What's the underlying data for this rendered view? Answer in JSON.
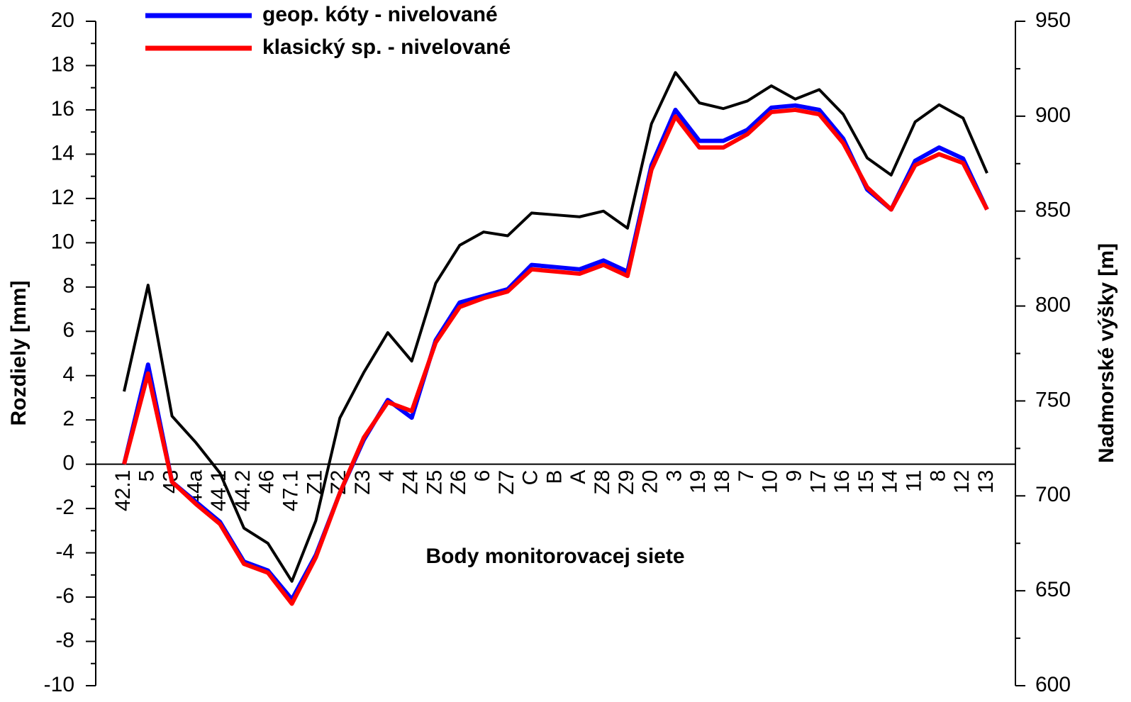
{
  "chart_data": {
    "type": "line",
    "y_label": "Rozdiely [mm]",
    "y2_label": "Nadmorské výšky [m]",
    "x_label": "Body monitorovacej siete",
    "categories": [
      "42.1",
      "5",
      "43",
      "44a",
      "44.1",
      "44.2",
      "46",
      "47.1",
      "Z1",
      "Z2",
      "Z3",
      "4",
      "Z4",
      "Z5",
      "Z6",
      "6",
      "Z7",
      "C",
      "B",
      "A",
      "Z8",
      "Z9",
      "20",
      "3",
      "19",
      "18",
      "7",
      "10",
      "9",
      "17",
      "16",
      "15",
      "14",
      "11",
      "8",
      "12",
      "13"
    ],
    "series": [
      {
        "name": "geop. kóty - nivelované",
        "color": "#0000ff",
        "values": [
          0,
          4.5,
          -0.8,
          -1.7,
          -2.6,
          -4.4,
          -4.8,
          -6.1,
          -4.1,
          -1.3,
          1.1,
          2.9,
          2.1,
          5.6,
          7.3,
          7.6,
          7.9,
          9.0,
          8.9,
          8.8,
          9.2,
          8.7,
          13.5,
          16.0,
          14.6,
          14.6,
          15.1,
          16.1,
          16.2,
          16.0,
          14.7,
          12.4,
          11.5,
          13.7,
          14.3,
          13.8,
          11.5
        ]
      },
      {
        "name": "klasický sp. - nivelované",
        "color": "#ff0000",
        "values": [
          0,
          4.1,
          -0.8,
          -1.8,
          -2.7,
          -4.5,
          -4.9,
          -6.3,
          -4.2,
          -1.3,
          1.2,
          2.8,
          2.4,
          5.5,
          7.1,
          7.5,
          7.8,
          8.8,
          8.7,
          8.6,
          9.0,
          8.5,
          13.3,
          15.7,
          14.3,
          14.3,
          14.9,
          15.9,
          16.0,
          15.8,
          14.5,
          12.5,
          11.5,
          13.5,
          14.0,
          13.6,
          11.5
        ]
      },
      {
        "color": "#000000",
        "axis": "y2",
        "values": [
          755,
          811,
          742,
          728,
          712,
          683,
          675,
          655,
          687,
          741,
          765,
          786,
          771,
          812,
          832,
          839,
          837,
          849,
          848,
          847,
          850,
          841,
          896,
          923,
          907,
          904,
          908,
          916,
          909,
          914,
          901,
          878,
          869,
          897,
          906,
          899,
          870
        ]
      }
    ],
    "ylim": [
      -10,
      20
    ],
    "yticks": [
      -10,
      -8,
      -6,
      -4,
      -2,
      0,
      2,
      4,
      6,
      8,
      10,
      12,
      14,
      16,
      18,
      20
    ],
    "y2lim": [
      600,
      950
    ],
    "y2ticks": [
      600,
      650,
      700,
      750,
      800,
      850,
      900,
      950
    ],
    "grid": false
  }
}
